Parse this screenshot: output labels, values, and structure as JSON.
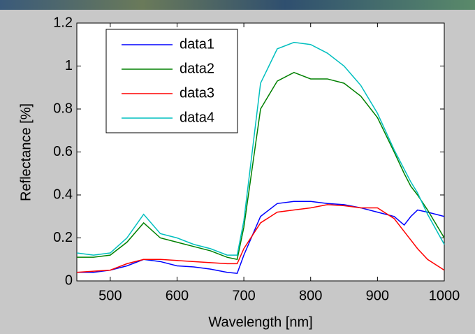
{
  "chart_data": {
    "type": "line",
    "x_label": "Wavelength [nm]",
    "y_label": "Reflectance [%]",
    "x": [
      450,
      475,
      500,
      525,
      550,
      575,
      600,
      625,
      650,
      675,
      690,
      700,
      725,
      750,
      775,
      800,
      825,
      850,
      875,
      900,
      925,
      940,
      950,
      960,
      975,
      1000
    ],
    "series": [
      {
        "name": "data1",
        "color": "#0000ff",
        "values": [
          0.04,
          0.04,
          0.05,
          0.07,
          0.1,
          0.09,
          0.07,
          0.065,
          0.055,
          0.04,
          0.035,
          0.12,
          0.3,
          0.36,
          0.37,
          0.37,
          0.36,
          0.355,
          0.34,
          0.32,
          0.3,
          0.26,
          0.3,
          0.33,
          0.32,
          0.3
        ]
      },
      {
        "name": "data2",
        "color": "#008000",
        "values": [
          0.11,
          0.11,
          0.12,
          0.18,
          0.27,
          0.2,
          0.18,
          0.16,
          0.14,
          0.11,
          0.1,
          0.25,
          0.8,
          0.93,
          0.97,
          0.94,
          0.94,
          0.92,
          0.86,
          0.76,
          0.6,
          0.5,
          0.44,
          0.4,
          0.33,
          0.2
        ]
      },
      {
        "name": "data3",
        "color": "#ff0000",
        "values": [
          0.04,
          0.045,
          0.05,
          0.08,
          0.1,
          0.1,
          0.095,
          0.09,
          0.085,
          0.08,
          0.08,
          0.15,
          0.27,
          0.32,
          0.33,
          0.34,
          0.355,
          0.35,
          0.34,
          0.34,
          0.29,
          0.23,
          0.19,
          0.15,
          0.1,
          0.05
        ]
      },
      {
        "name": "data4",
        "color": "#00bfbf",
        "values": [
          0.13,
          0.12,
          0.13,
          0.2,
          0.31,
          0.22,
          0.2,
          0.17,
          0.15,
          0.12,
          0.12,
          0.28,
          0.92,
          1.08,
          1.11,
          1.1,
          1.06,
          1.0,
          0.91,
          0.78,
          0.61,
          0.52,
          0.46,
          0.41,
          0.31,
          0.17
        ]
      }
    ],
    "xlim": [
      450,
      1000
    ],
    "xticks": [
      500,
      600,
      700,
      800,
      900,
      1000
    ],
    "ylim": [
      0,
      1.2
    ],
    "yticks": [
      0,
      0.2,
      0.4,
      0.6,
      0.8,
      1,
      1.2
    ],
    "grid": false,
    "legend": "upper left"
  }
}
